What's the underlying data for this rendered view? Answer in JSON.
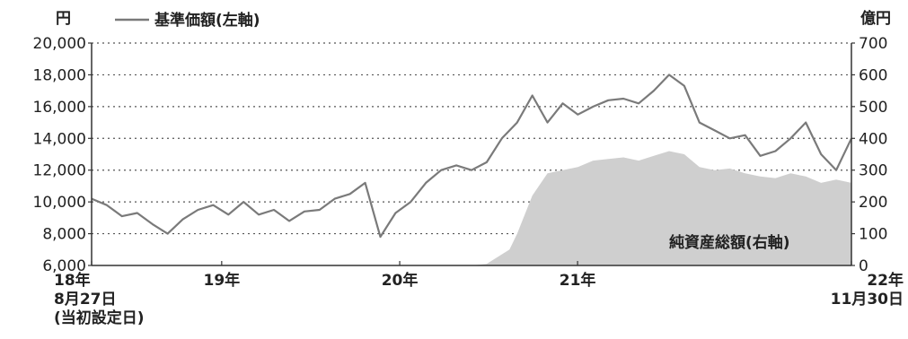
{
  "chart_data": {
    "type": "line",
    "left_unit": "円",
    "right_unit": "億円",
    "left_ticks": [
      "20,000",
      "18,000",
      "16,000",
      "14,000",
      "12,000",
      "10,000",
      "8,000",
      "6,000"
    ],
    "right_ticks": [
      "700",
      "600",
      "500",
      "400",
      "300",
      "200",
      "100",
      "0"
    ],
    "ylim_left": [
      6000,
      20000
    ],
    "ylim_right": [
      0,
      700
    ],
    "grid": "dotted horizontal",
    "legend_placement": "top-left",
    "x_labels": [
      {
        "lines": [
          "18年",
          "8月27日",
          "(当初設定日)"
        ],
        "t": 0
      },
      {
        "lines": [
          "19年"
        ],
        "t": 0.1712
      },
      {
        "lines": [
          "20年"
        ],
        "t": 0.4055
      },
      {
        "lines": [
          "21年"
        ],
        "t": 0.6396
      },
      {
        "lines": [
          "22年",
          "11月30日"
        ],
        "t": 1
      }
    ],
    "series": [
      {
        "name": "基準価額(左軸)",
        "axis": "left",
        "style": "line",
        "color": "#7a7a7a",
        "x": [
          0,
          0.02,
          0.04,
          0.06,
          0.08,
          0.1,
          0.12,
          0.14,
          0.16,
          0.18,
          0.2,
          0.22,
          0.24,
          0.26,
          0.28,
          0.3,
          0.32,
          0.34,
          0.36,
          0.38,
          0.4,
          0.42,
          0.44,
          0.46,
          0.48,
          0.5,
          0.52,
          0.54,
          0.56,
          0.58,
          0.6,
          0.62,
          0.64,
          0.66,
          0.68,
          0.7,
          0.72,
          0.74,
          0.76,
          0.78,
          0.8,
          0.82,
          0.84,
          0.86,
          0.88,
          0.9,
          0.92,
          0.94,
          0.96,
          0.98,
          1
        ],
        "values": [
          10200,
          9800,
          9100,
          9300,
          8600,
          8000,
          8900,
          9500,
          9800,
          9200,
          10000,
          9200,
          9500,
          8800,
          9400,
          9500,
          10200,
          10500,
          11200,
          7800,
          9300,
          10000,
          11200,
          12000,
          12300,
          12000,
          12500,
          14000,
          15000,
          16700,
          15000,
          16200,
          15500,
          16000,
          16400,
          16500,
          16200,
          17000,
          18000,
          17300,
          15000,
          14500,
          14000,
          14200,
          12900,
          13200,
          14000,
          15000,
          13000,
          12000,
          14000
        ]
      },
      {
        "name": "純資産総額(右軸)",
        "axis": "right",
        "style": "area",
        "color": "#cfcfcf",
        "x": [
          0,
          0.5,
          0.52,
          0.53,
          0.55,
          0.56,
          0.58,
          0.6,
          0.62,
          0.64,
          0.66,
          0.68,
          0.7,
          0.72,
          0.74,
          0.76,
          0.78,
          0.8,
          0.82,
          0.84,
          0.86,
          0.88,
          0.9,
          0.92,
          0.94,
          0.96,
          0.98,
          1
        ],
        "values": [
          0,
          0,
          5,
          20,
          50,
          100,
          220,
          290,
          300,
          310,
          330,
          335,
          340,
          330,
          345,
          360,
          350,
          310,
          300,
          305,
          290,
          280,
          275,
          290,
          280,
          260,
          270,
          260
        ]
      }
    ]
  }
}
